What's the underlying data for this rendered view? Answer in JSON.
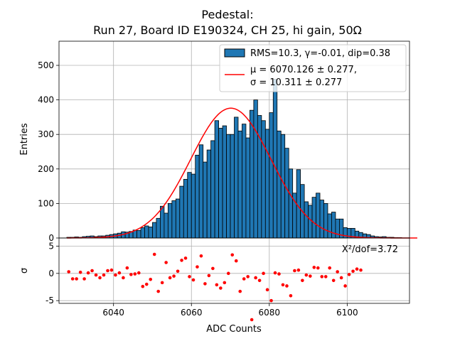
{
  "chart_data": {
    "type": "bar",
    "title_line1": "Pedestal:",
    "title_line2": "Run 27, Board ID E190324, CH 25, hi gain, 50Ω",
    "xlabel": "ADC Counts",
    "ylabel_main": "Entries",
    "ylabel_resid": "σ",
    "xlim": [
      6026,
      6116
    ],
    "ylim_main": [
      0,
      570
    ],
    "ylim_resid": [
      -5.5,
      6.5
    ],
    "x_ticks": [
      6040,
      6060,
      6080,
      6100
    ],
    "y_ticks_main": [
      0,
      100,
      200,
      300,
      400,
      500
    ],
    "y_ticks_resid": [
      -5,
      0,
      5
    ],
    "grid": true,
    "legend": {
      "placement": "top-right",
      "hist_label": "RMS=10.3, γ=-0.01, dip=0.38",
      "fit_label_line1": "μ = 6070.126 ± 0.277,",
      "fit_label_line2": "σ = 10.311 ± 0.277"
    },
    "chi2_label": "X²/dof=3.72",
    "colors": {
      "bars": "#1f77b4",
      "fit": "#ff0000",
      "points": "#ff0000",
      "edge": "#000000",
      "grid": "#b0b0b0"
    },
    "fit": {
      "mu": 6070.126,
      "sigma": 10.311,
      "amplitude": 376
    },
    "bin_width": 1,
    "bins_start": 6028,
    "counts": [
      2,
      2,
      3,
      2,
      4,
      5,
      6,
      4,
      6,
      6,
      8,
      10,
      12,
      14,
      18,
      17,
      19,
      23,
      22,
      30,
      35,
      32,
      45,
      57,
      92,
      72,
      100,
      108,
      113,
      150,
      170,
      190,
      185,
      240,
      270,
      220,
      255,
      282,
      340,
      318,
      325,
      300,
      300,
      350,
      310,
      330,
      290,
      370,
      400,
      355,
      340,
      315,
      363,
      460,
      310,
      300,
      260,
      200,
      130,
      198,
      155,
      105,
      95,
      118,
      130,
      110,
      100,
      70,
      75,
      55,
      55,
      30,
      28,
      28,
      20,
      16,
      12,
      10,
      6,
      4,
      3,
      4,
      2,
      2,
      1,
      1,
      0,
      0,
      0,
      0
    ],
    "residuals": {
      "x": [
        6028.5,
        6029.5,
        6030.5,
        6031.5,
        6032.5,
        6033.5,
        6034.5,
        6035.5,
        6036.5,
        6037.5,
        6038.5,
        6039.5,
        6040.5,
        6041.5,
        6042.5,
        6043.5,
        6044.5,
        6045.5,
        6046.5,
        6047.5,
        6048.5,
        6049.5,
        6050.5,
        6051.5,
        6052.5,
        6053.5,
        6054.5,
        6055.5,
        6056.5,
        6057.5,
        6058.5,
        6059.5,
        6060.5,
        6061.5,
        6062.5,
        6063.5,
        6064.5,
        6065.5,
        6066.5,
        6067.5,
        6068.5,
        6069.5,
        6070.5,
        6071.5,
        6072.5,
        6073.5,
        6074.5,
        6075.5,
        6076.5,
        6077.5,
        6078.5,
        6079.5,
        6080.5,
        6081.5,
        6082.5,
        6083.5,
        6084.5,
        6085.5,
        6086.5,
        6087.5,
        6088.5,
        6089.5,
        6090.5,
        6091.5,
        6092.5,
        6093.5,
        6094.5,
        6095.5,
        6096.5,
        6097.5,
        6098.5,
        6099.5,
        6100.5,
        6101.5,
        6102.5,
        6103.5
      ],
      "y": [
        0.3,
        -1.0,
        -1.0,
        0.2,
        -1.0,
        0.1,
        0.5,
        -0.3,
        -0.8,
        -0.3,
        0.5,
        0.6,
        -0.3,
        0.1,
        -0.8,
        1.0,
        -0.2,
        -0.1,
        0.1,
        -2.4,
        -2.0,
        -1.1,
        3.5,
        -3.3,
        -1.7,
        2.0,
        -0.8,
        -0.5,
        0.4,
        2.4,
        2.8,
        -0.6,
        -1.2,
        1.2,
        3.2,
        -1.9,
        -0.4,
        0.9,
        -2.1,
        -2.7,
        -1.7,
        0.0,
        3.4,
        2.3,
        -3.3,
        -1.0,
        -0.6,
        -8.5,
        -0.8,
        -1.3,
        0.0,
        -3.0,
        -5.0,
        0.1,
        -0.1,
        -2.1,
        -2.3,
        -4.1,
        0.5,
        0.6,
        -1.3,
        -0.3,
        -0.5,
        1.1,
        1.0,
        -0.6,
        -0.6,
        1.0,
        -1.3,
        0.3,
        -0.8,
        -2.3,
        -0.2,
        0.4,
        0.8,
        0.6
      ]
    }
  }
}
